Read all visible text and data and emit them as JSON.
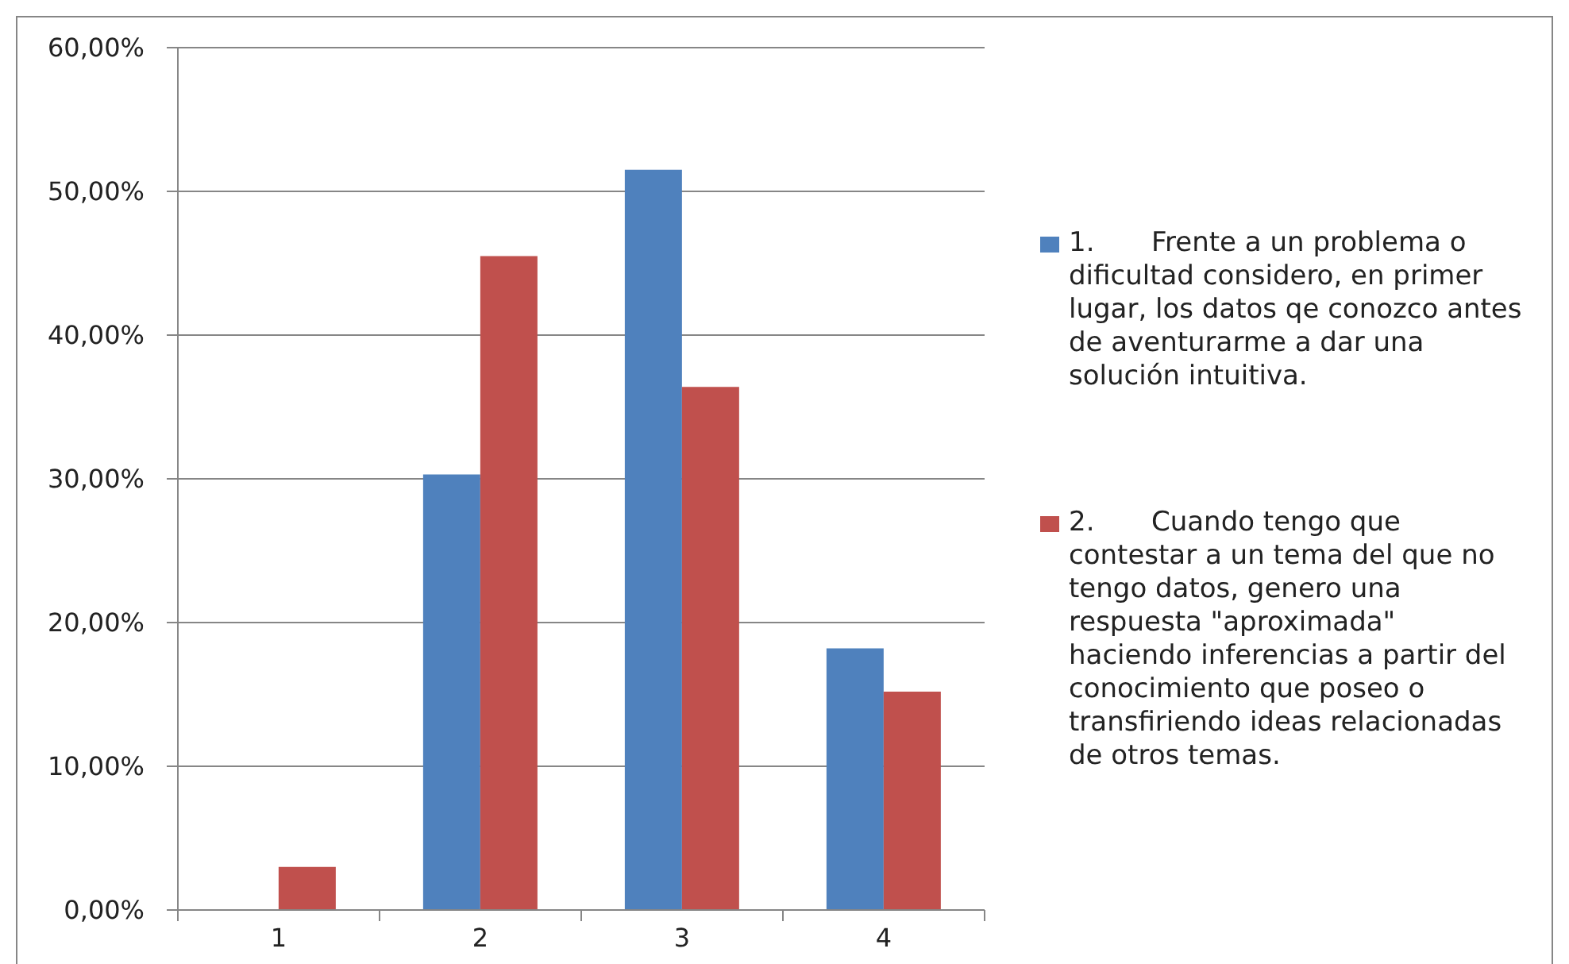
{
  "chart_data": {
    "type": "bar",
    "categories": [
      "1",
      "2",
      "3",
      "4"
    ],
    "series": [
      {
        "name": "1.\tFrente a un problema o dificultad considero, en primer lugar, los datos qe conozco antes de aventurarme a dar una solución intuitiva.",
        "color": "#4f81bd",
        "values": [
          0,
          30.3,
          51.5,
          18.2
        ]
      },
      {
        "name": "2.\tCuando tengo que contestar a un tema del que no tengo datos, genero una respuesta \"aproximada\" haciendo inferencias a partir del conocimiento que poseo o transfiriendo ideas relacionadas de otros temas.",
        "color": "#c0504d",
        "values": [
          3.0,
          45.5,
          36.4,
          15.2
        ]
      }
    ],
    "ylim": [
      0,
      60
    ],
    "yticks": [
      {
        "value": 0,
        "label": "0,00%"
      },
      {
        "value": 10,
        "label": "10,00%"
      },
      {
        "value": 20,
        "label": "20,00%"
      },
      {
        "value": 30,
        "label": "30,00%"
      },
      {
        "value": 40,
        "label": "40,00%"
      },
      {
        "value": 50,
        "label": "50,00%"
      },
      {
        "value": 60,
        "label": "60,00%"
      }
    ],
    "grid": "y",
    "legend": "right"
  }
}
